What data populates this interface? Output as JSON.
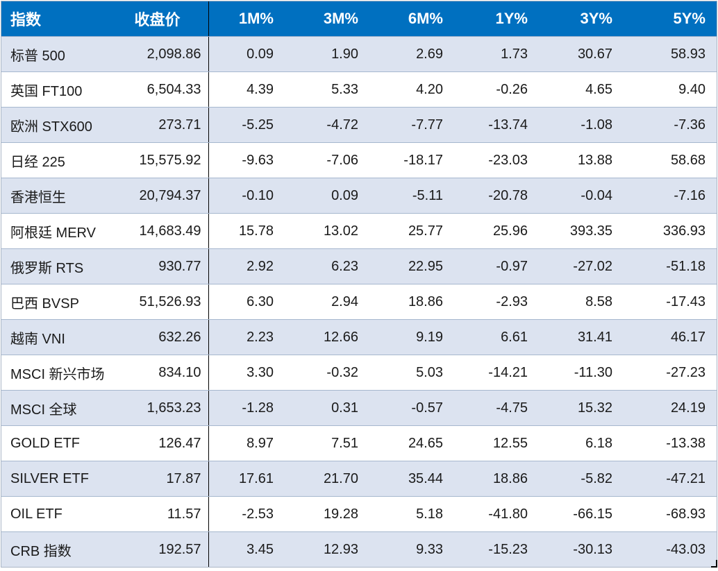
{
  "colors": {
    "header_bg": "#0070C0",
    "header_text": "#FFFFFF",
    "row_alt_bg": "#DCE3F0",
    "row_bg": "#FFFFFF",
    "grid_line": "#A6B7CE",
    "column_divider": "#000000",
    "body_text": "#1A1A1A"
  },
  "chart_data": {
    "type": "table",
    "columns": [
      "指数",
      "收盘价",
      "1M%",
      "3M%",
      "6M%",
      "1Y%",
      "3Y%",
      "5Y%"
    ],
    "rows": [
      {
        "name": "标普 500",
        "close": "2,098.86",
        "values": [
          "0.09",
          "1.90",
          "2.69",
          "1.73",
          "30.67",
          "58.93"
        ]
      },
      {
        "name": "英国 FT100",
        "close": "6,504.33",
        "values": [
          "4.39",
          "5.33",
          "4.20",
          "-0.26",
          "4.65",
          "9.40"
        ]
      },
      {
        "name": "欧洲 STX600",
        "close": "273.71",
        "values": [
          "-5.25",
          "-4.72",
          "-7.77",
          "-13.74",
          "-1.08",
          "-7.36"
        ]
      },
      {
        "name": "日经 225",
        "close": "15,575.92",
        "values": [
          "-9.63",
          "-7.06",
          "-18.17",
          "-23.03",
          "13.88",
          "58.68"
        ]
      },
      {
        "name": "香港恒生",
        "close": "20,794.37",
        "values": [
          "-0.10",
          "0.09",
          "-5.11",
          "-20.78",
          "-0.04",
          "-7.16"
        ]
      },
      {
        "name": "阿根廷 MERV",
        "close": "14,683.49",
        "values": [
          "15.78",
          "13.02",
          "25.77",
          "25.96",
          "393.35",
          "336.93"
        ]
      },
      {
        "name": "俄罗斯 RTS",
        "close": "930.77",
        "values": [
          "2.92",
          "6.23",
          "22.95",
          "-0.97",
          "-27.02",
          "-51.18"
        ]
      },
      {
        "name": "巴西 BVSP",
        "close": "51,526.93",
        "values": [
          "6.30",
          "2.94",
          "18.86",
          "-2.93",
          "8.58",
          "-17.43"
        ]
      },
      {
        "name": "越南 VNI",
        "close": "632.26",
        "values": [
          "2.23",
          "12.66",
          "9.19",
          "6.61",
          "31.41",
          "46.17"
        ]
      },
      {
        "name": "MSCI 新兴市场",
        "close": "834.10",
        "values": [
          "3.30",
          "-0.32",
          "5.03",
          "-14.21",
          "-11.30",
          "-27.23"
        ]
      },
      {
        "name": "MSCI 全球",
        "close": "1,653.23",
        "values": [
          "-1.28",
          "0.31",
          "-0.57",
          "-4.75",
          "15.32",
          "24.19"
        ]
      },
      {
        "name": "GOLD ETF",
        "close": "126.47",
        "values": [
          "8.97",
          "7.51",
          "24.65",
          "12.55",
          "6.18",
          "-13.38"
        ]
      },
      {
        "name": "SILVER ETF",
        "close": "17.87",
        "values": [
          "17.61",
          "21.70",
          "35.44",
          "18.86",
          "-5.82",
          "-47.21"
        ]
      },
      {
        "name": "OIL ETF",
        "close": "11.57",
        "values": [
          "-2.53",
          "19.28",
          "5.18",
          "-41.80",
          "-66.15",
          "-68.93"
        ]
      },
      {
        "name": "CRB 指数",
        "close": "192.57",
        "values": [
          "3.45",
          "12.93",
          "9.33",
          "-15.23",
          "-30.13",
          "-43.03"
        ]
      }
    ]
  }
}
